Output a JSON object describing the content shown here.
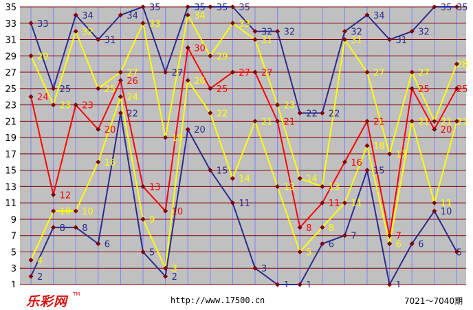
{
  "chart_data": {
    "type": "line",
    "title": "",
    "xlabel": "",
    "ylabel": "",
    "ylim": [
      1,
      35
    ],
    "y_ticks": [
      1,
      3,
      5,
      7,
      9,
      11,
      13,
      15,
      17,
      19,
      21,
      23,
      25,
      27,
      29,
      31,
      33,
      35
    ],
    "x_count": 20,
    "grid": true,
    "series": [
      {
        "color": "#2b2b8f",
        "values": [
          33,
          25,
          34,
          31,
          34,
          35,
          27,
          35,
          35,
          35,
          32,
          32,
          22,
          22,
          32,
          34,
          31,
          32,
          35,
          35
        ]
      },
      {
        "color": "#ffff00",
        "values": [
          29,
          23,
          32,
          25,
          27,
          33,
          19,
          34,
          29,
          33,
          31,
          23,
          14,
          13,
          31,
          27,
          17,
          27,
          21,
          28
        ]
      },
      {
        "color": "#ff0000",
        "values": [
          24,
          12,
          23,
          20,
          26,
          13,
          10,
          30,
          25,
          27,
          27,
          21,
          8,
          11,
          16,
          21,
          7,
          25,
          20,
          25
        ]
      },
      {
        "color": "#ffff00",
        "values": [
          4,
          10,
          10,
          16,
          24,
          9,
          3,
          26,
          22,
          14,
          21,
          13,
          5,
          8,
          11,
          18,
          6,
          21,
          11,
          21
        ]
      },
      {
        "color": "#2b2b8f",
        "values": [
          2,
          8,
          8,
          6,
          22,
          5,
          2,
          20,
          15,
          11,
          3,
          1,
          1,
          6,
          7,
          15,
          1,
          6,
          10,
          5
        ]
      }
    ]
  },
  "footer": {
    "logo": "乐彩网",
    "logo_tm": "TM",
    "url": "http://www.17500.cn",
    "period": "7021～7040期"
  },
  "colors": {
    "plot_bg": "#c0c0c0",
    "vgrid": "#8080ff",
    "hgrid": "#800000",
    "marker": "#800000",
    "axis_text": "#000000"
  }
}
